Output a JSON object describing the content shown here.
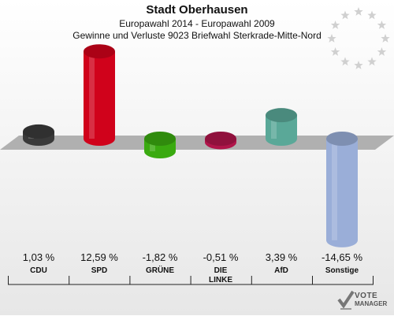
{
  "title": "Stadt Oberhausen",
  "subtitle1": "Europawahl 2014 - Europawahl 2009",
  "subtitle2": "Gewinne und Verluste 9023 Briefwahl Sterkrade-Mitte-Nord",
  "logo": {
    "line1": "VOTE",
    "line2": "MANAGER"
  },
  "colors": {
    "background_top": "#ffffff",
    "background_bottom": "#e7e7e7",
    "zero_band": "#b0b0b0",
    "stars": "#d0d0d0"
  },
  "chart_data": {
    "type": "bar",
    "categories": [
      "CDU",
      "SPD",
      "GRÜNE",
      "DIE LINKE",
      "AfD",
      "Sonstige"
    ],
    "values": [
      1.03,
      12.59,
      -1.82,
      -0.51,
      3.39,
      -14.65
    ],
    "value_labels": [
      "1,03 %",
      "12,59 %",
      "-1,82 %",
      "-0,51 %",
      "3,39 %",
      "-14,65 %"
    ],
    "colors": [
      "#3a3a3a",
      "#d0021b",
      "#3aaa10",
      "#b0154a",
      "#5aa898",
      "#9aaed8"
    ],
    "ylim": [
      -14.65,
      12.59
    ],
    "xlabel": "",
    "ylabel": ""
  }
}
